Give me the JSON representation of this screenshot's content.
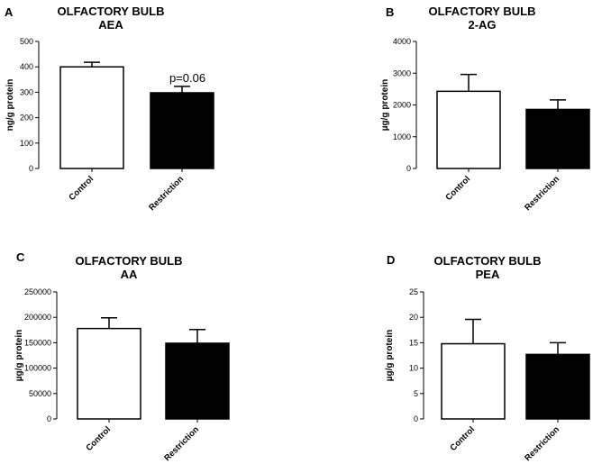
{
  "chart_data": [
    {
      "type": "bar",
      "panel": "A",
      "title": "OLFACTORY BULB",
      "subtitle": "AEA",
      "ylabel": "ng/g protein",
      "categories": [
        "Control",
        "Restriction"
      ],
      "values": [
        400,
        298
      ],
      "errors": [
        18,
        25
      ],
      "colors": [
        "#ffffff",
        "#000000"
      ],
      "ylim": [
        0,
        500
      ],
      "yticks": [
        0,
        100,
        200,
        300,
        400,
        500
      ],
      "ytick_labels": [
        "0",
        "100",
        "200",
        "300",
        "400",
        "500"
      ],
      "annotation": "p=0.06"
    },
    {
      "type": "bar",
      "panel": "B",
      "title": "OLFACTORY BULB",
      "subtitle": "2-AG",
      "ylabel": "µg/g protein",
      "categories": [
        "Control",
        "Restriction"
      ],
      "values": [
        2430,
        1860
      ],
      "errors": [
        530,
        300
      ],
      "colors": [
        "#ffffff",
        "#000000"
      ],
      "ylim": [
        0,
        4000
      ],
      "yticks": [
        0,
        1000,
        2000,
        3000,
        4000
      ],
      "ytick_labels": [
        "0",
        "1000",
        "2000",
        "3000",
        "4000"
      ]
    },
    {
      "type": "bar",
      "panel": "C",
      "title": "OLFACTORY BULB",
      "subtitle": "AA",
      "ylabel": "µg/g protein",
      "categories": [
        "Control",
        "Restriction"
      ],
      "values": [
        178000,
        149000
      ],
      "errors": [
        21000,
        27000
      ],
      "colors": [
        "#ffffff",
        "#000000"
      ],
      "ylim": [
        0,
        250000
      ],
      "yticks": [
        0,
        50000,
        100000,
        150000,
        200000,
        250000
      ],
      "ytick_labels": [
        "0",
        "50000",
        "100000",
        "150000",
        "200000",
        "250000"
      ]
    },
    {
      "type": "bar",
      "panel": "D",
      "title": "OLFACTORY BULB",
      "subtitle": "PEA",
      "ylabel": "µg/g protein",
      "categories": [
        "Control",
        "Restriction"
      ],
      "values": [
        14.8,
        12.7
      ],
      "errors": [
        4.8,
        2.3
      ],
      "colors": [
        "#ffffff",
        "#000000"
      ],
      "ylim": [
        0,
        25
      ],
      "yticks": [
        0,
        5,
        10,
        15,
        20,
        25
      ],
      "ytick_labels": [
        "0",
        "5",
        "10",
        "15",
        "20",
        "25"
      ]
    }
  ]
}
